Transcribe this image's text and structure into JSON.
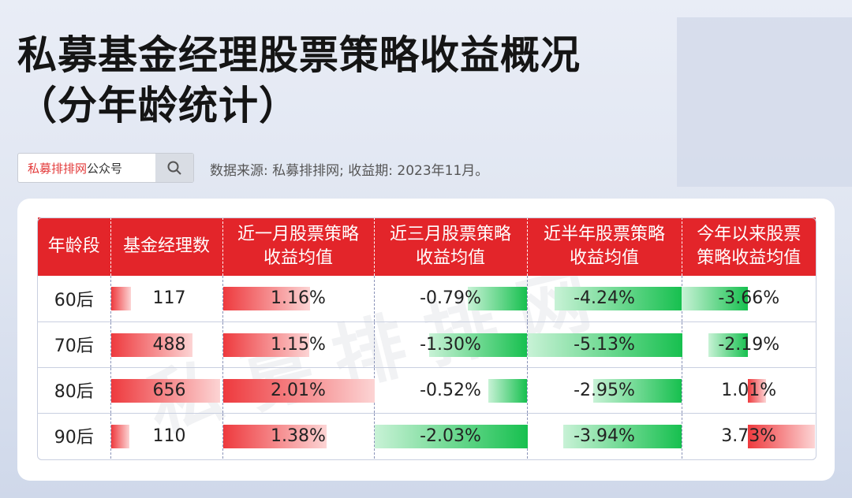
{
  "header": {
    "title_line1": "私募基金经理股票策略收益概况",
    "title_line2": "（分年龄统计）",
    "search_brand": "私募排排网",
    "search_suffix": "公众号",
    "source": "数据来源: 私募排排网; 收益期: 2023年11月。",
    "watermark": "私募排排网"
  },
  "chart_data": {
    "type": "table",
    "columns": [
      "年龄段",
      "基金经理数",
      "近一月股票策略收益均值",
      "近三月股票策略收益均值",
      "近半年股票策略收益均值",
      "今年以来股票策略收益均值"
    ],
    "header_lines": [
      [
        "年龄段"
      ],
      [
        "基金经理数"
      ],
      [
        "近一月股票策略",
        "收益均值"
      ],
      [
        "近三月股票策略",
        "收益均值"
      ],
      [
        "近半年股票策略",
        "收益均值"
      ],
      [
        "今年以来股票",
        "策略收益均值"
      ]
    ],
    "rows": [
      {
        "age": "60后",
        "count": 117,
        "m1": 1.16,
        "m3": -0.79,
        "m6": -4.24,
        "ytd": -3.66
      },
      {
        "age": "70后",
        "count": 488,
        "m1": 1.15,
        "m3": -1.3,
        "m6": -5.13,
        "ytd": -2.19
      },
      {
        "age": "80后",
        "count": 656,
        "m1": 2.01,
        "m3": -0.52,
        "m6": -2.95,
        "ytd": 1.01
      },
      {
        "age": "90后",
        "count": 110,
        "m1": 1.38,
        "m3": -2.03,
        "m6": -3.94,
        "ytd": 3.73
      }
    ],
    "unit": "%",
    "colors": {
      "header": "#e3252a",
      "positive": "#ee3a3e",
      "negative": "#17c04f"
    }
  }
}
